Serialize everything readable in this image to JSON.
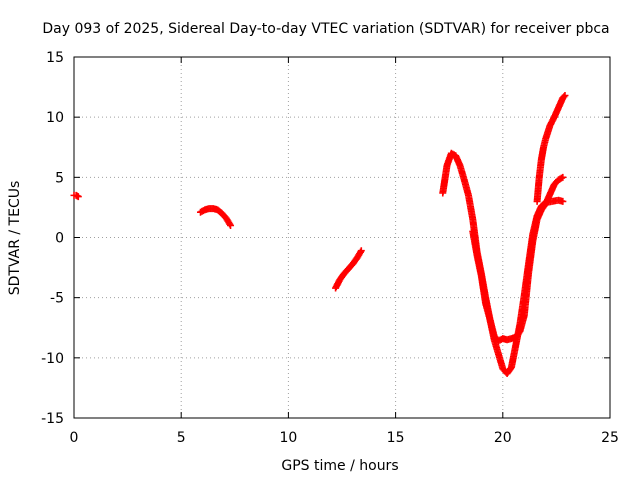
{
  "chart_data": {
    "type": "scatter",
    "title": "Day 093 of 2025, Sidereal Day-to-day VTEC variation (SDTVAR) for receiver pbca",
    "xlabel": "GPS time / hours",
    "ylabel": "SDTVAR / TECUs",
    "xlim": [
      0,
      25
    ],
    "ylim": [
      -15,
      15
    ],
    "xticks": [
      0,
      5,
      10,
      15,
      20,
      25
    ],
    "yticks": [
      -15,
      -10,
      -5,
      0,
      5,
      10,
      15
    ],
    "xtick_labels": [
      "0",
      "5",
      "10",
      "15",
      "20",
      "25"
    ],
    "ytick_labels": [
      "-15",
      "-10",
      "-5",
      "0",
      "5",
      "10",
      "15"
    ],
    "grid": true,
    "marker_color": "#ff0000",
    "marker": "plus",
    "series": [
      {
        "points": [
          [
            0.0,
            3.5
          ],
          [
            0.1,
            3.5
          ],
          [
            0.2,
            3.4
          ]
        ]
      },
      {
        "points": [
          [
            5.9,
            2.1
          ],
          [
            6.1,
            2.3
          ],
          [
            6.3,
            2.4
          ],
          [
            6.5,
            2.4
          ],
          [
            6.7,
            2.3
          ],
          [
            6.9,
            2.0
          ],
          [
            7.1,
            1.6
          ],
          [
            7.3,
            1.0
          ]
        ]
      },
      {
        "points": [
          [
            12.2,
            -4.2
          ],
          [
            12.4,
            -3.5
          ],
          [
            12.6,
            -3.0
          ],
          [
            12.8,
            -2.6
          ],
          [
            13.0,
            -2.2
          ],
          [
            13.2,
            -1.7
          ],
          [
            13.4,
            -1.1
          ]
        ]
      },
      {
        "points": [
          [
            17.2,
            3.7
          ],
          [
            17.4,
            6.0
          ],
          [
            17.6,
            7.0
          ],
          [
            17.8,
            6.8
          ],
          [
            18.0,
            6.0
          ],
          [
            18.2,
            4.8
          ],
          [
            18.4,
            3.5
          ],
          [
            18.6,
            1.5
          ],
          [
            18.8,
            -1.2
          ],
          [
            19.0,
            -3.0
          ],
          [
            19.2,
            -5.0
          ],
          [
            19.4,
            -6.8
          ],
          [
            19.6,
            -8.5
          ],
          [
            19.8,
            -9.7
          ],
          [
            20.0,
            -10.9
          ],
          [
            20.2,
            -11.3
          ],
          [
            20.4,
            -10.8
          ],
          [
            20.6,
            -9.0
          ],
          [
            20.8,
            -7.2
          ],
          [
            21.0,
            -4.8
          ],
          [
            21.2,
            -2.2
          ],
          [
            21.4,
            0.3
          ],
          [
            21.6,
            1.8
          ],
          [
            21.8,
            2.6
          ],
          [
            22.0,
            2.9
          ],
          [
            22.3,
            3.0
          ],
          [
            22.6,
            3.1
          ],
          [
            22.8,
            3.0
          ]
        ]
      },
      {
        "points": [
          [
            18.6,
            0.5
          ],
          [
            18.8,
            -1.5
          ],
          [
            19.0,
            -3.2
          ],
          [
            19.2,
            -5.5
          ],
          [
            19.4,
            -6.8
          ],
          [
            19.6,
            -8.2
          ],
          [
            19.8,
            -8.6
          ],
          [
            20.0,
            -8.4
          ],
          [
            20.2,
            -8.5
          ],
          [
            20.4,
            -8.4
          ],
          [
            20.6,
            -8.3
          ],
          [
            20.8,
            -7.8
          ],
          [
            21.0,
            -6.5
          ],
          [
            21.2,
            -3.0
          ],
          [
            21.4,
            -0.3
          ],
          [
            21.6,
            1.5
          ],
          [
            21.8,
            2.3
          ],
          [
            22.0,
            2.8
          ],
          [
            22.2,
            3.6
          ],
          [
            22.4,
            4.4
          ],
          [
            22.6,
            4.8
          ],
          [
            22.8,
            5.0
          ]
        ]
      },
      {
        "points": [
          [
            21.6,
            3.0
          ],
          [
            21.7,
            5.0
          ],
          [
            21.8,
            6.5
          ],
          [
            21.9,
            7.5
          ],
          [
            22.0,
            8.2
          ],
          [
            22.2,
            9.3
          ],
          [
            22.4,
            10.0
          ],
          [
            22.6,
            10.8
          ],
          [
            22.8,
            11.6
          ],
          [
            22.9,
            11.8
          ]
        ]
      }
    ]
  }
}
